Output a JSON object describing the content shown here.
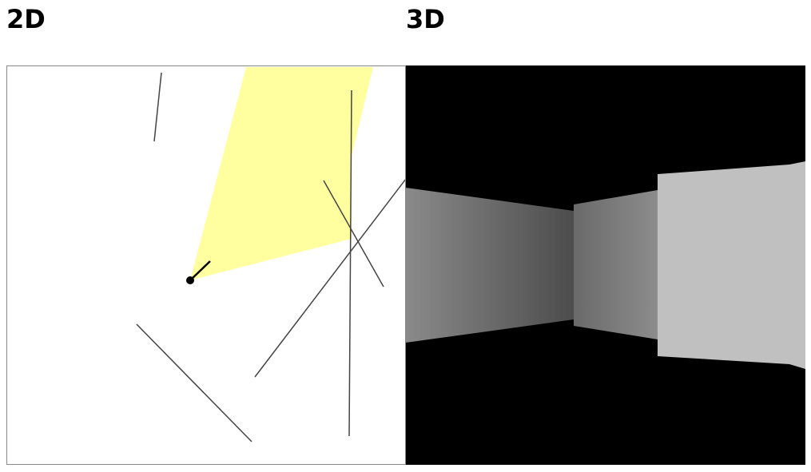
{
  "headings": {
    "view_2d": "2D",
    "view_3d": "3D"
  },
  "colors": {
    "background": "#ffffff",
    "view_3d_background": "#000000",
    "light_cone": "#ffffa0",
    "wall_stroke": "#444444",
    "player": "#000000",
    "canvas_border": "#888888"
  },
  "icons": {
    "player_marker": "player-dot-icon",
    "direction_indicator": "direction-line-icon"
  }
}
